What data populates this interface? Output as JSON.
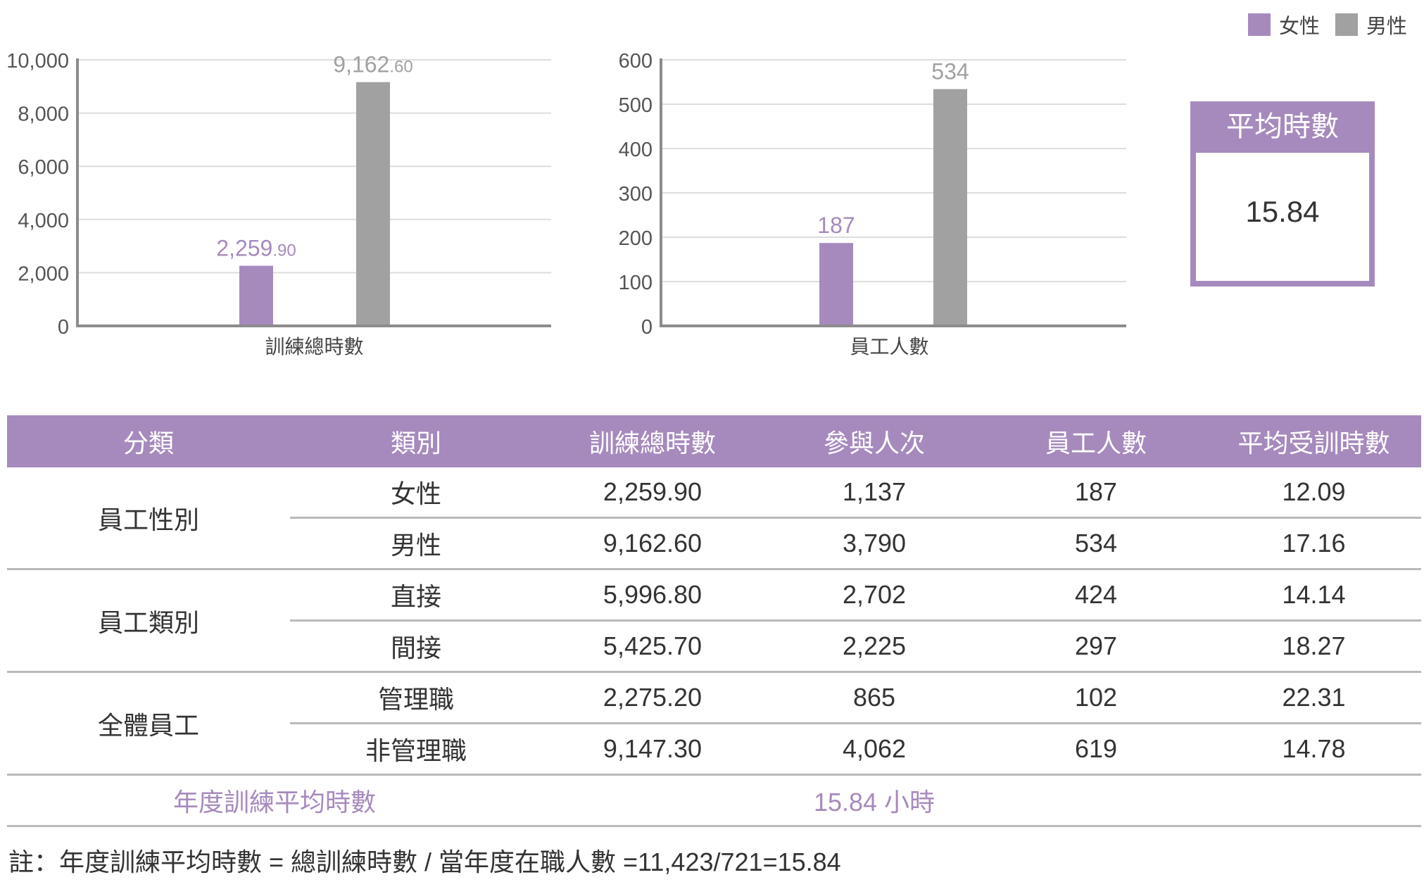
{
  "colors": {
    "female": "#a68abd",
    "male": "#a0a1a0",
    "grid": "#dddddd",
    "axis": "#8c8c8c"
  },
  "legend": [
    {
      "label": "女性",
      "color": "#a68abd"
    },
    {
      "label": "男性",
      "color": "#a0a1a0"
    }
  ],
  "chart_data": [
    {
      "type": "bar",
      "title": "",
      "xlabel": "訓練總時數",
      "ylabel": "",
      "categories": [
        "訓練總時數"
      ],
      "series": [
        {
          "name": "女性",
          "values": [
            2259.9
          ],
          "label_main": "2,259",
          "label_decimal": ".90"
        },
        {
          "name": "男性",
          "values": [
            9162.6
          ],
          "label_main": "9,162",
          "label_decimal": ".60"
        }
      ],
      "ylim": [
        0,
        10000
      ],
      "yticks": [
        0,
        2000,
        4000,
        6000,
        8000,
        10000
      ],
      "ytick_labels": [
        "0",
        "2,000",
        "4,000",
        "6,000",
        "8,000",
        "10,000"
      ],
      "grid": true
    },
    {
      "type": "bar",
      "title": "",
      "xlabel": "員工人數",
      "ylabel": "",
      "categories": [
        "員工人數"
      ],
      "series": [
        {
          "name": "女性",
          "values": [
            187
          ],
          "label_main": "187",
          "label_decimal": ""
        },
        {
          "name": "男性",
          "values": [
            534
          ],
          "label_main": "534",
          "label_decimal": ""
        }
      ],
      "ylim": [
        0,
        600
      ],
      "yticks": [
        0,
        100,
        200,
        300,
        400,
        500,
        600
      ],
      "ytick_labels": [
        "0",
        "100",
        "200",
        "300",
        "400",
        "500",
        "600"
      ],
      "grid": true
    }
  ],
  "avg_box": {
    "title": "平均時數",
    "value": "15.84"
  },
  "table": {
    "headers": [
      "分類",
      "類別",
      "訓練總時數",
      "參與人次",
      "員工人數",
      "平均受訓時數"
    ],
    "groups": [
      {
        "name": "員工性別",
        "rows": [
          [
            "女性",
            "2,259.90",
            "1,137",
            "187",
            "12.09"
          ],
          [
            "男性",
            "9,162.60",
            "3,790",
            "534",
            "17.16"
          ]
        ]
      },
      {
        "name": "員工類別",
        "rows": [
          [
            "直接",
            "5,996.80",
            "2,702",
            "424",
            "14.14"
          ],
          [
            "間接",
            "5,425.70",
            "2,225",
            "297",
            "18.27"
          ]
        ]
      },
      {
        "name": "全體員工",
        "rows": [
          [
            "管理職",
            "2,275.20",
            "865",
            "102",
            "22.31"
          ],
          [
            "非管理職",
            "9,147.30",
            "4,062",
            "619",
            "14.78"
          ]
        ]
      }
    ],
    "summary_label": "年度訓練平均時數",
    "summary_value": "15.84 小時"
  },
  "note": "註：年度訓練平均時數 = 總訓練時數 / 當年度在職人數 =11,423/721=15.84"
}
